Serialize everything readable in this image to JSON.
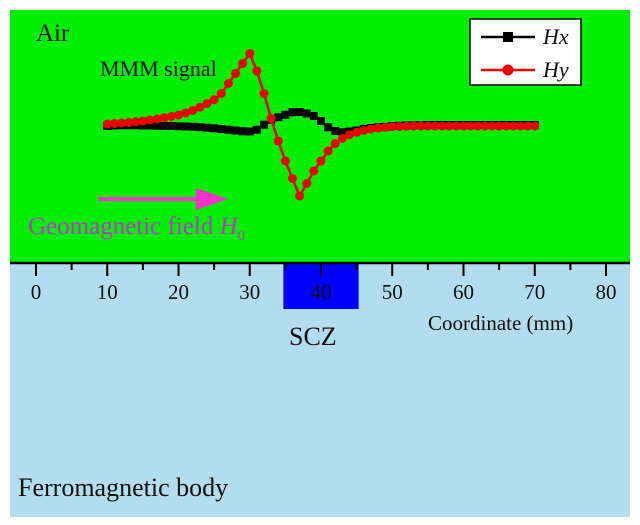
{
  "regions": {
    "air_label": "Air",
    "body_label": "Ferromagnetic body",
    "scz_label": "SCZ",
    "air_color": "#00ee00",
    "body_color": "#b4dcef",
    "scz_color": "#0000ff"
  },
  "signal_label": "MMM signal",
  "field": {
    "label": "Geomagnetic field ",
    "symbol": "H",
    "subscript": "0",
    "arrow_color": "#ff33cc",
    "text_color": "#b040c0"
  },
  "axis": {
    "title": "Coordinate (mm)",
    "range": [
      0,
      80
    ],
    "ticks": [
      "0",
      "10",
      "20",
      "30",
      "40",
      "50",
      "60",
      "70",
      "80"
    ],
    "scz_range_mm": [
      35,
      45
    ]
  },
  "chart_data": {
    "type": "line",
    "x": [
      10,
      11,
      12,
      13,
      14,
      15,
      16,
      17,
      18,
      19,
      20,
      21,
      22,
      23,
      24,
      25,
      26,
      27,
      28,
      29,
      30,
      31,
      32,
      33,
      34,
      35,
      36,
      37,
      38,
      39,
      40,
      41,
      42,
      43,
      44,
      45,
      46,
      47,
      48,
      49,
      50,
      51,
      52,
      53,
      54,
      55,
      56,
      57,
      58,
      59,
      60,
      61,
      62,
      63,
      64,
      65,
      66,
      67,
      68,
      69,
      70
    ],
    "series": [
      {
        "name": "Hx",
        "color": "#000000",
        "marker": "square",
        "values": [
          0.0,
          0.02,
          0.03,
          0.03,
          0.03,
          0.02,
          0.02,
          0.01,
          0.0,
          0.0,
          -0.01,
          -0.02,
          -0.03,
          -0.05,
          -0.07,
          -0.09,
          -0.12,
          -0.15,
          -0.18,
          -0.21,
          -0.22,
          -0.15,
          0.05,
          0.25,
          0.35,
          0.45,
          0.55,
          0.56,
          0.5,
          0.4,
          0.2,
          -0.05,
          -0.2,
          -0.25,
          -0.22,
          -0.18,
          -0.12,
          -0.08,
          -0.05,
          -0.03,
          0.0,
          0.01,
          0.02,
          0.03,
          0.03,
          0.04,
          0.04,
          0.04,
          0.04,
          0.04,
          0.04,
          0.04,
          0.04,
          0.04,
          0.04,
          0.04,
          0.04,
          0.04,
          0.04,
          0.04,
          0.04
        ]
      },
      {
        "name": "Hy",
        "color": "#ee0000",
        "marker": "circle",
        "values": [
          0.08,
          0.1,
          0.12,
          0.14,
          0.17,
          0.2,
          0.24,
          0.28,
          0.33,
          0.38,
          0.44,
          0.52,
          0.62,
          0.75,
          0.9,
          1.05,
          1.3,
          1.7,
          2.1,
          2.5,
          2.9,
          2.2,
          1.3,
          0.3,
          -0.6,
          -1.4,
          -2.1,
          -2.8,
          -2.3,
          -1.8,
          -1.4,
          -1.0,
          -0.7,
          -0.5,
          -0.35,
          -0.25,
          -0.18,
          -0.12,
          -0.08,
          -0.05,
          -0.03,
          -0.02,
          -0.01,
          0.0,
          0.0,
          0.0,
          0.0,
          0.0,
          0.0,
          0.0,
          0.0,
          0.0,
          0.0,
          0.0,
          0.0,
          0.0,
          0.0,
          0.0,
          0.0,
          0.0,
          0.0
        ]
      }
    ],
    "legend": {
      "entries": [
        "Hx",
        "Hy"
      ],
      "position": "top-right"
    }
  }
}
